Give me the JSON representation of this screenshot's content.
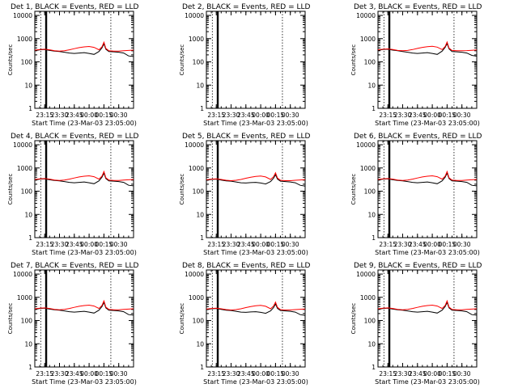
{
  "figure": {
    "x_tick_labels": [
      "23:15",
      "23:30",
      "23:45",
      "00:00",
      "00:15",
      "00:30"
    ],
    "y_tick_labels": [
      "1",
      "10",
      "100",
      "1000",
      "10000"
    ],
    "ylabel": "Counts/sec",
    "xlabel": "Start Time (23-Mar-03 23:05:00)",
    "colors": {
      "events": "#000000",
      "lld": "#ff0000",
      "axes": "#000000"
    }
  },
  "chart_data": [
    {
      "type": "line",
      "title": "Det 1, BLACK = Events, RED = LLD",
      "xlabel": "Start Time (23-Mar-03 23:05:00)",
      "ylabel": "Counts/sec",
      "x_start": "23:05",
      "x_end": "00:45",
      "x_unit": "time (HH:MM)",
      "ylim": [
        1,
        15000
      ],
      "yscale": "log",
      "x": [
        "23:05",
        "23:10",
        "23:15",
        "23:20",
        "23:25",
        "23:30",
        "23:35",
        "23:40",
        "23:45",
        "23:50",
        "23:55",
        "00:00",
        "00:05",
        "00:10",
        "00:13",
        "00:15",
        "00:17",
        "00:20",
        "00:25",
        "00:30",
        "00:35",
        "00:40",
        "00:45"
      ],
      "series": [
        {
          "values": [
            300,
            330,
            340,
            310,
            290,
            280,
            260,
            240,
            230,
            240,
            250,
            230,
            210,
            280,
            400,
            600,
            350,
            280,
            270,
            260,
            240,
            180,
            170
          ]
        },
        {
          "values": [
            320,
            340,
            350,
            330,
            300,
            290,
            300,
            330,
            370,
            410,
            440,
            460,
            420,
            330,
            450,
            700,
            380,
            300,
            290,
            290,
            300,
            310,
            320
          ]
        }
      ],
      "vlines_solid": [
        "23:16",
        "23:17"
      ],
      "vlines_dotted": [
        "23:11",
        "00:22",
        "00:45"
      ]
    },
    {
      "type": "line",
      "title": "Det 2, BLACK = Events, RED = LLD",
      "xlabel": "Start Time (23-Mar-03 23:05:00)",
      "ylabel": "Counts/sec",
      "x_start": "23:05",
      "x_end": "00:45",
      "x_unit": "time (HH:MM)",
      "ylim": [
        1,
        15000
      ],
      "yscale": "log",
      "x": [],
      "series": [],
      "vlines_solid": [
        "23:16",
        "23:17"
      ],
      "vlines_dotted": [
        "23:11",
        "00:22",
        "00:45"
      ]
    },
    {
      "type": "line",
      "title": "Det 3, BLACK = Events, RED = LLD",
      "xlabel": "Start Time (23-Mar-03 23:05:00)",
      "ylabel": "Counts/sec",
      "x_start": "23:05",
      "x_end": "00:45",
      "x_unit": "time (HH:MM)",
      "ylim": [
        1,
        15000
      ],
      "yscale": "log",
      "x": [
        "23:05",
        "23:10",
        "23:15",
        "23:20",
        "23:25",
        "23:30",
        "23:35",
        "23:40",
        "23:45",
        "23:50",
        "23:55",
        "00:00",
        "00:05",
        "00:10",
        "00:13",
        "00:15",
        "00:17",
        "00:20",
        "00:25",
        "00:30",
        "00:35",
        "00:40",
        "00:45"
      ],
      "series": [
        {
          "values": [
            310,
            340,
            350,
            320,
            300,
            280,
            260,
            240,
            230,
            240,
            250,
            230,
            210,
            290,
            420,
            620,
            360,
            280,
            270,
            260,
            240,
            190,
            175
          ]
        },
        {
          "values": [
            330,
            350,
            360,
            340,
            310,
            300,
            310,
            340,
            380,
            420,
            450,
            470,
            430,
            340,
            460,
            720,
            390,
            310,
            300,
            300,
            305,
            315,
            325
          ]
        }
      ],
      "vlines_solid": [
        "23:16",
        "23:17"
      ],
      "vlines_dotted": [
        "23:11",
        "00:22",
        "00:45"
      ]
    },
    {
      "type": "line",
      "title": "Det 4, BLACK = Events, RED = LLD",
      "xlabel": "Start Time (23-Mar-03 23:05:00)",
      "ylabel": "Counts/sec",
      "x_start": "23:05",
      "x_end": "00:45",
      "x_unit": "time (HH:MM)",
      "ylim": [
        1,
        15000
      ],
      "yscale": "log",
      "x": [
        "23:05",
        "23:10",
        "23:15",
        "23:20",
        "23:25",
        "23:30",
        "23:35",
        "23:40",
        "23:45",
        "23:50",
        "23:55",
        "00:00",
        "00:05",
        "00:10",
        "00:13",
        "00:15",
        "00:17",
        "00:20",
        "00:25",
        "00:30",
        "00:35",
        "00:40",
        "00:45"
      ],
      "series": [
        {
          "values": [
            300,
            330,
            340,
            310,
            290,
            280,
            260,
            240,
            230,
            240,
            250,
            230,
            210,
            280,
            400,
            600,
            350,
            280,
            270,
            260,
            240,
            180,
            170
          ]
        },
        {
          "values": [
            320,
            340,
            350,
            330,
            300,
            290,
            300,
            330,
            370,
            410,
            440,
            460,
            420,
            330,
            450,
            700,
            380,
            300,
            290,
            290,
            300,
            310,
            320
          ]
        }
      ],
      "vlines_solid": [
        "23:16",
        "23:17"
      ],
      "vlines_dotted": [
        "23:11",
        "00:22",
        "00:45"
      ]
    },
    {
      "type": "line",
      "title": "Det 5, BLACK = Events, RED = LLD",
      "xlabel": "Start Time (23-Mar-03 23:05:00)",
      "ylabel": "Counts/sec",
      "x_start": "23:05",
      "x_end": "00:45",
      "x_unit": "time (HH:MM)",
      "ylim": [
        1,
        15000
      ],
      "yscale": "log",
      "x": [
        "23:05",
        "23:10",
        "23:15",
        "23:20",
        "23:25",
        "23:30",
        "23:35",
        "23:40",
        "23:45",
        "23:50",
        "23:55",
        "00:00",
        "00:05",
        "00:10",
        "00:13",
        "00:15",
        "00:17",
        "00:20",
        "00:25",
        "00:30",
        "00:35",
        "00:40",
        "00:45"
      ],
      "series": [
        {
          "values": [
            290,
            320,
            330,
            300,
            280,
            270,
            250,
            230,
            225,
            235,
            240,
            225,
            205,
            260,
            360,
            520,
            330,
            270,
            260,
            250,
            230,
            180,
            165
          ]
        },
        {
          "values": [
            310,
            330,
            340,
            320,
            295,
            285,
            295,
            320,
            360,
            400,
            430,
            450,
            410,
            320,
            420,
            620,
            370,
            295,
            285,
            285,
            295,
            305,
            315
          ]
        }
      ],
      "vlines_solid": [
        "23:16",
        "23:17"
      ],
      "vlines_dotted": [
        "23:11",
        "00:22",
        "00:45"
      ]
    },
    {
      "type": "line",
      "title": "Det 6, BLACK = Events, RED = LLD",
      "xlabel": "Start Time (23-Mar-03 23:05:00)",
      "ylabel": "Counts/sec",
      "x_start": "23:05",
      "x_end": "00:45",
      "x_unit": "time (HH:MM)",
      "ylim": [
        1,
        15000
      ],
      "yscale": "log",
      "x": [
        "23:05",
        "23:10",
        "23:15",
        "23:20",
        "23:25",
        "23:30",
        "23:35",
        "23:40",
        "23:45",
        "23:50",
        "23:55",
        "00:00",
        "00:05",
        "00:10",
        "00:13",
        "00:15",
        "00:17",
        "00:20",
        "00:25",
        "00:30",
        "00:35",
        "00:40",
        "00:45"
      ],
      "series": [
        {
          "values": [
            300,
            330,
            340,
            310,
            290,
            280,
            260,
            240,
            230,
            240,
            250,
            230,
            210,
            280,
            400,
            600,
            350,
            280,
            270,
            260,
            240,
            180,
            170
          ]
        },
        {
          "values": [
            320,
            340,
            350,
            330,
            300,
            290,
            300,
            330,
            370,
            410,
            440,
            460,
            420,
            330,
            450,
            700,
            380,
            300,
            290,
            290,
            300,
            310,
            320
          ]
        }
      ],
      "vlines_solid": [
        "23:16",
        "23:17"
      ],
      "vlines_dotted": [
        "23:11",
        "00:22",
        "00:45"
      ]
    },
    {
      "type": "line",
      "title": "Det 7, BLACK = Events, RED = LLD",
      "xlabel": "Start Time (23-Mar-03 23:05:00)",
      "ylabel": "Counts/sec",
      "x_start": "23:05",
      "x_end": "00:45",
      "x_unit": "time (HH:MM)",
      "ylim": [
        1,
        15000
      ],
      "yscale": "log",
      "x": [
        "23:05",
        "23:10",
        "23:15",
        "23:20",
        "23:25",
        "23:30",
        "23:35",
        "23:40",
        "23:45",
        "23:50",
        "23:55",
        "00:00",
        "00:05",
        "00:10",
        "00:13",
        "00:15",
        "00:17",
        "00:20",
        "00:25",
        "00:30",
        "00:35",
        "00:40",
        "00:45"
      ],
      "series": [
        {
          "values": [
            300,
            330,
            340,
            310,
            290,
            280,
            260,
            240,
            230,
            240,
            250,
            230,
            210,
            280,
            400,
            600,
            350,
            280,
            270,
            260,
            240,
            180,
            170
          ]
        },
        {
          "values": [
            320,
            340,
            350,
            330,
            300,
            290,
            300,
            330,
            370,
            410,
            440,
            460,
            420,
            330,
            450,
            700,
            380,
            300,
            290,
            290,
            300,
            310,
            320
          ]
        }
      ],
      "vlines_solid": [
        "23:16",
        "23:17"
      ],
      "vlines_dotted": [
        "23:11",
        "00:22",
        "00:45"
      ]
    },
    {
      "type": "line",
      "title": "Det 8, BLACK = Events, RED = LLD",
      "xlabel": "Start Time (23-Mar-03 23:05:00)",
      "ylabel": "Counts/sec",
      "x_start": "23:05",
      "x_end": "00:45",
      "x_unit": "time (HH:MM)",
      "ylim": [
        1,
        15000
      ],
      "yscale": "log",
      "x": [
        "23:05",
        "23:10",
        "23:15",
        "23:20",
        "23:25",
        "23:30",
        "23:35",
        "23:40",
        "23:45",
        "23:50",
        "23:55",
        "00:00",
        "00:05",
        "00:10",
        "00:13",
        "00:15",
        "00:17",
        "00:20",
        "00:25",
        "00:30",
        "00:35",
        "00:40",
        "00:45"
      ],
      "series": [
        {
          "values": [
            290,
            320,
            330,
            300,
            280,
            270,
            250,
            230,
            225,
            235,
            240,
            225,
            205,
            260,
            360,
            520,
            330,
            270,
            260,
            250,
            230,
            180,
            165
          ]
        },
        {
          "values": [
            310,
            330,
            340,
            320,
            295,
            285,
            295,
            320,
            360,
            400,
            430,
            450,
            410,
            320,
            420,
            620,
            370,
            295,
            285,
            285,
            295,
            305,
            315
          ]
        }
      ],
      "vlines_solid": [
        "23:16",
        "23:17"
      ],
      "vlines_dotted": [
        "23:11",
        "00:22",
        "00:45"
      ]
    },
    {
      "type": "line",
      "title": "Det 9, BLACK = Events, RED = LLD",
      "xlabel": "Start Time (23-Mar-03 23:05:00)",
      "ylabel": "Counts/sec",
      "x_start": "23:05",
      "x_end": "00:45",
      "x_unit": "time (HH:MM)",
      "ylim": [
        1,
        15000
      ],
      "yscale": "log",
      "x": [
        "23:05",
        "23:10",
        "23:15",
        "23:20",
        "23:25",
        "23:30",
        "23:35",
        "23:40",
        "23:45",
        "23:50",
        "23:55",
        "00:00",
        "00:05",
        "00:10",
        "00:13",
        "00:15",
        "00:17",
        "00:20",
        "00:25",
        "00:30",
        "00:35",
        "00:40",
        "00:45"
      ],
      "series": [
        {
          "values": [
            300,
            330,
            340,
            310,
            290,
            280,
            260,
            240,
            230,
            240,
            250,
            230,
            210,
            280,
            400,
            600,
            350,
            280,
            270,
            260,
            240,
            180,
            170
          ]
        },
        {
          "values": [
            320,
            340,
            350,
            330,
            300,
            290,
            300,
            330,
            370,
            410,
            440,
            460,
            420,
            330,
            450,
            700,
            380,
            300,
            290,
            290,
            300,
            310,
            320
          ]
        }
      ],
      "vlines_solid": [
        "23:16",
        "23:17"
      ],
      "vlines_dotted": [
        "23:11",
        "00:22",
        "00:45"
      ]
    }
  ]
}
